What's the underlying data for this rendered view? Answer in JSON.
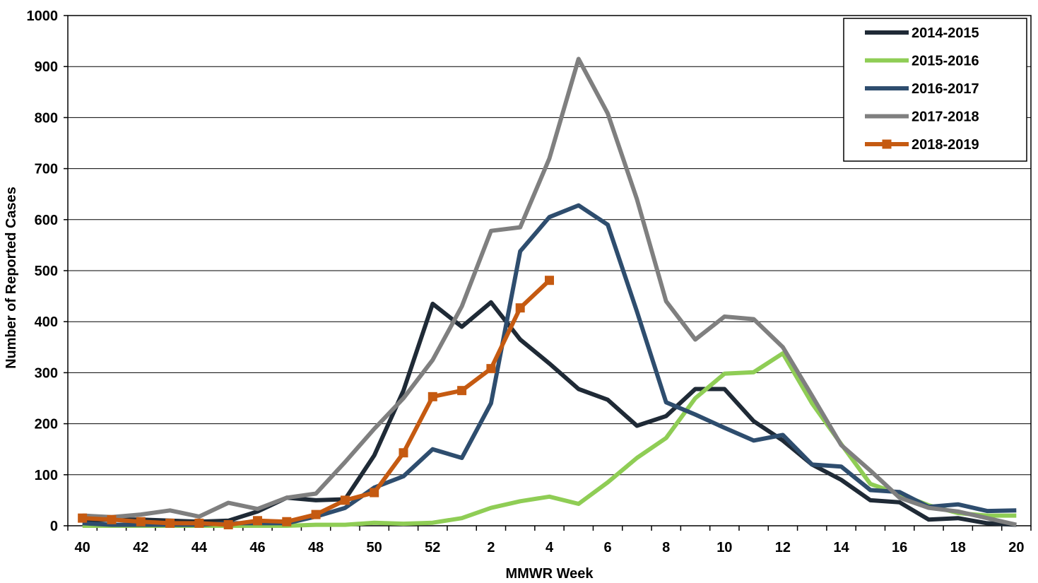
{
  "chart_data": {
    "type": "line",
    "title": "",
    "xlabel": "MMWR Week",
    "ylabel": "Number of Reported Cases",
    "ylim": [
      0,
      1000
    ],
    "y_ticks": [
      0,
      100,
      200,
      300,
      400,
      500,
      600,
      700,
      800,
      900,
      1000
    ],
    "categories": [
      "40",
      "41",
      "42",
      "43",
      "44",
      "45",
      "46",
      "47",
      "48",
      "49",
      "50",
      "51",
      "52",
      "1",
      "2",
      "3",
      "4",
      "5",
      "6",
      "7",
      "8",
      "9",
      "10",
      "11",
      "12",
      "13",
      "14",
      "15",
      "16",
      "17",
      "18",
      "19",
      "20"
    ],
    "x_tick_labels": [
      "40",
      "42",
      "44",
      "46",
      "48",
      "50",
      "52",
      "2",
      "4",
      "6",
      "8",
      "10",
      "12",
      "14",
      "16",
      "18",
      "20"
    ],
    "grid": "horizontal",
    "legend_position": "top-right",
    "series": [
      {
        "name": "2014-2015",
        "color": "#1f2a36",
        "marker": "none",
        "values": [
          10,
          12,
          12,
          10,
          8,
          10,
          28,
          55,
          50,
          52,
          138,
          265,
          435,
          390,
          438,
          365,
          318,
          268,
          247,
          196,
          215,
          268,
          268,
          205,
          167,
          120,
          90,
          50,
          46,
          12,
          15,
          5,
          2
        ]
      },
      {
        "name": "2015-2016",
        "color": "#8fcd55",
        "marker": "none",
        "values": [
          0,
          0,
          0,
          0,
          0,
          0,
          0,
          0,
          2,
          2,
          6,
          4,
          6,
          15,
          35,
          48,
          57,
          43,
          85,
          133,
          172,
          250,
          298,
          301,
          338,
          240,
          160,
          82,
          62,
          40,
          25,
          20,
          20
        ]
      },
      {
        "name": "2016-2017",
        "color": "#2e4d6e",
        "marker": "none",
        "values": [
          5,
          2,
          2,
          2,
          2,
          5,
          5,
          5,
          18,
          35,
          75,
          97,
          150,
          133,
          240,
          538,
          605,
          628,
          590,
          420,
          242,
          218,
          192,
          167,
          178,
          120,
          116,
          70,
          66,
          37,
          42,
          29,
          30
        ]
      },
      {
        "name": "2017-2018",
        "color": "#7f7f7f",
        "marker": "none",
        "values": [
          20,
          17,
          22,
          30,
          18,
          45,
          33,
          55,
          63,
          125,
          190,
          250,
          325,
          430,
          578,
          585,
          720,
          915,
          808,
          640,
          440,
          365,
          410,
          405,
          350,
          255,
          158,
          108,
          55,
          35,
          28,
          15,
          2
        ]
      },
      {
        "name": "2018-2019",
        "color": "#c55a11",
        "marker": "square",
        "values": [
          15,
          12,
          8,
          5,
          5,
          2,
          10,
          8,
          22,
          50,
          65,
          143,
          253,
          265,
          308,
          427,
          481,
          null,
          null,
          null,
          null,
          null,
          null,
          null,
          null,
          null,
          null,
          null,
          null,
          null,
          null,
          null,
          null
        ]
      }
    ]
  }
}
